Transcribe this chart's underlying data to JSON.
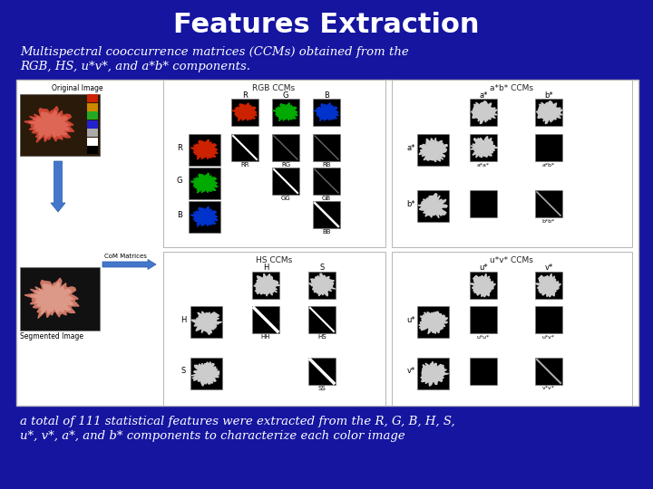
{
  "title": "Features Extraction",
  "subtitle_line1": "Multispectral cooccurrence matrices (CCMs) obtained from the",
  "subtitle_line2": "RGB, HS, u*v*, and a*b* components.",
  "footer_line1": "a total of 111 statistical features were extracted from the R, G, B, H, S,",
  "footer_line2": "u*, v*, a*, and b* components to characterize each color image",
  "bg_color": "#1a1aaa",
  "title_color": "#ffffff",
  "subtitle_color": "#ffffff",
  "footer_color": "#ffffff"
}
